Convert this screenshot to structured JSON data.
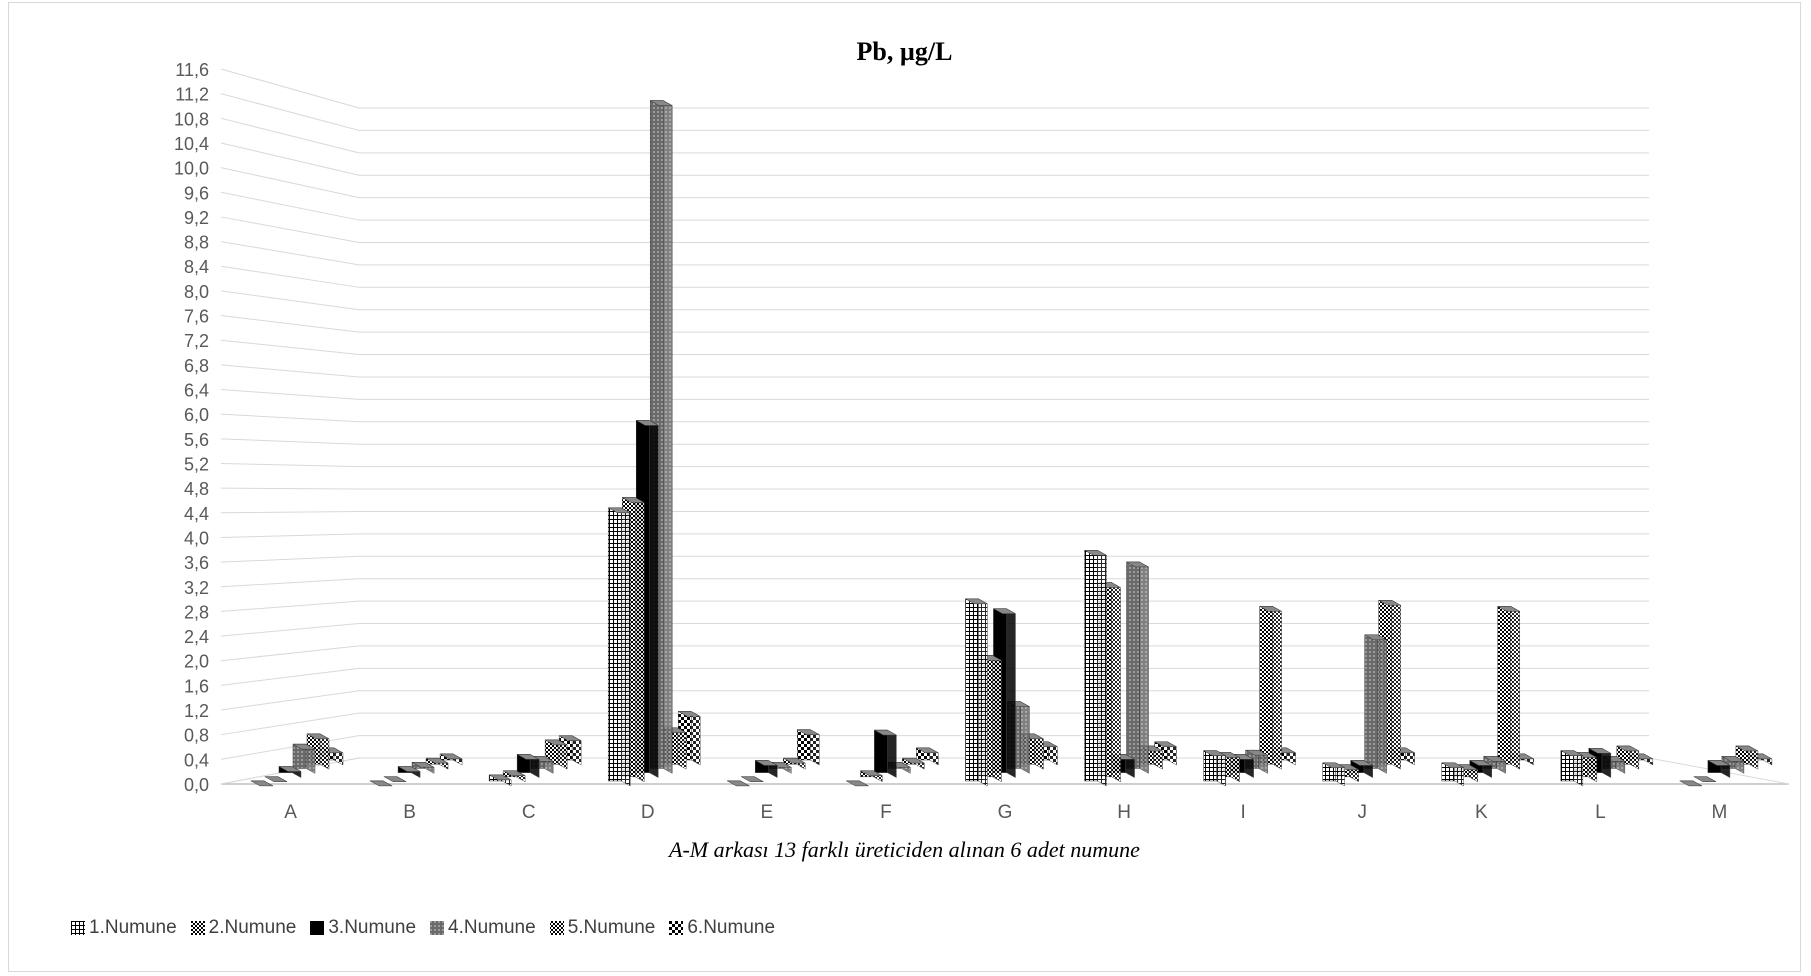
{
  "chart_data": {
    "type": "bar",
    "title": "Pb, µg/L",
    "xlabel": "A-M arkası 13 farklı üreticiden alınan 6 adet numune",
    "ylabel": "",
    "ylim": [
      0,
      11.6
    ],
    "y_ticks": [
      "0,0",
      "0,4",
      "0,8",
      "1,2",
      "1,6",
      "2,0",
      "2,4",
      "2,8",
      "3,2",
      "3,6",
      "4,0",
      "4,4",
      "4,8",
      "5,2",
      "5,6",
      "6,0",
      "6,4",
      "6,8",
      "7,2",
      "7,6",
      "8,0",
      "8,4",
      "8,8",
      "9,2",
      "9,6",
      "10,0",
      "10,4",
      "10,8",
      "11,2",
      "11,6"
    ],
    "categories": [
      "A",
      "B",
      "C",
      "D",
      "E",
      "F",
      "G",
      "H",
      "I",
      "J",
      "K",
      "L",
      "M"
    ],
    "grid": true,
    "legend_position": "bottom-left",
    "series": [
      {
        "name": "1.Numune",
        "color": "#ffffff",
        "values": [
          0,
          0,
          0.1,
          4.5,
          0,
          0,
          3.0,
          3.8,
          0.5,
          0.3,
          0.3,
          0.5,
          0
        ]
      },
      {
        "name": "2.Numune",
        "color": "#555555",
        "values": [
          0,
          0,
          0.1,
          4.6,
          0,
          0.1,
          2.0,
          3.2,
          0.4,
          0.2,
          0.2,
          0.4,
          0
        ]
      },
      {
        "name": "3.Numune",
        "color": "#111111",
        "values": [
          0.1,
          0.1,
          0.3,
          5.8,
          0.2,
          0.7,
          2.7,
          0.3,
          0.3,
          0.2,
          0.2,
          0.4,
          0.2
        ]
      },
      {
        "name": "4.Numune",
        "color": "#777777",
        "values": [
          0.4,
          0.1,
          0.2,
          11.0,
          0.1,
          0.1,
          1.1,
          3.4,
          0.3,
          2.2,
          0.2,
          0.2,
          0.2
        ]
      },
      {
        "name": "5.Numune",
        "color": "#222222",
        "values": [
          0.5,
          0.1,
          0.4,
          0.6,
          0.1,
          0.1,
          0.5,
          0.3,
          2.6,
          2.7,
          2.6,
          0.3,
          0.3
        ]
      },
      {
        "name": "6.Numune",
        "color": "#aaaaaa",
        "values": [
          0.2,
          0.1,
          0.4,
          0.8,
          0.5,
          0.2,
          0.3,
          0.3,
          0.2,
          0.2,
          0.1,
          0.1,
          0.1
        ]
      }
    ]
  }
}
